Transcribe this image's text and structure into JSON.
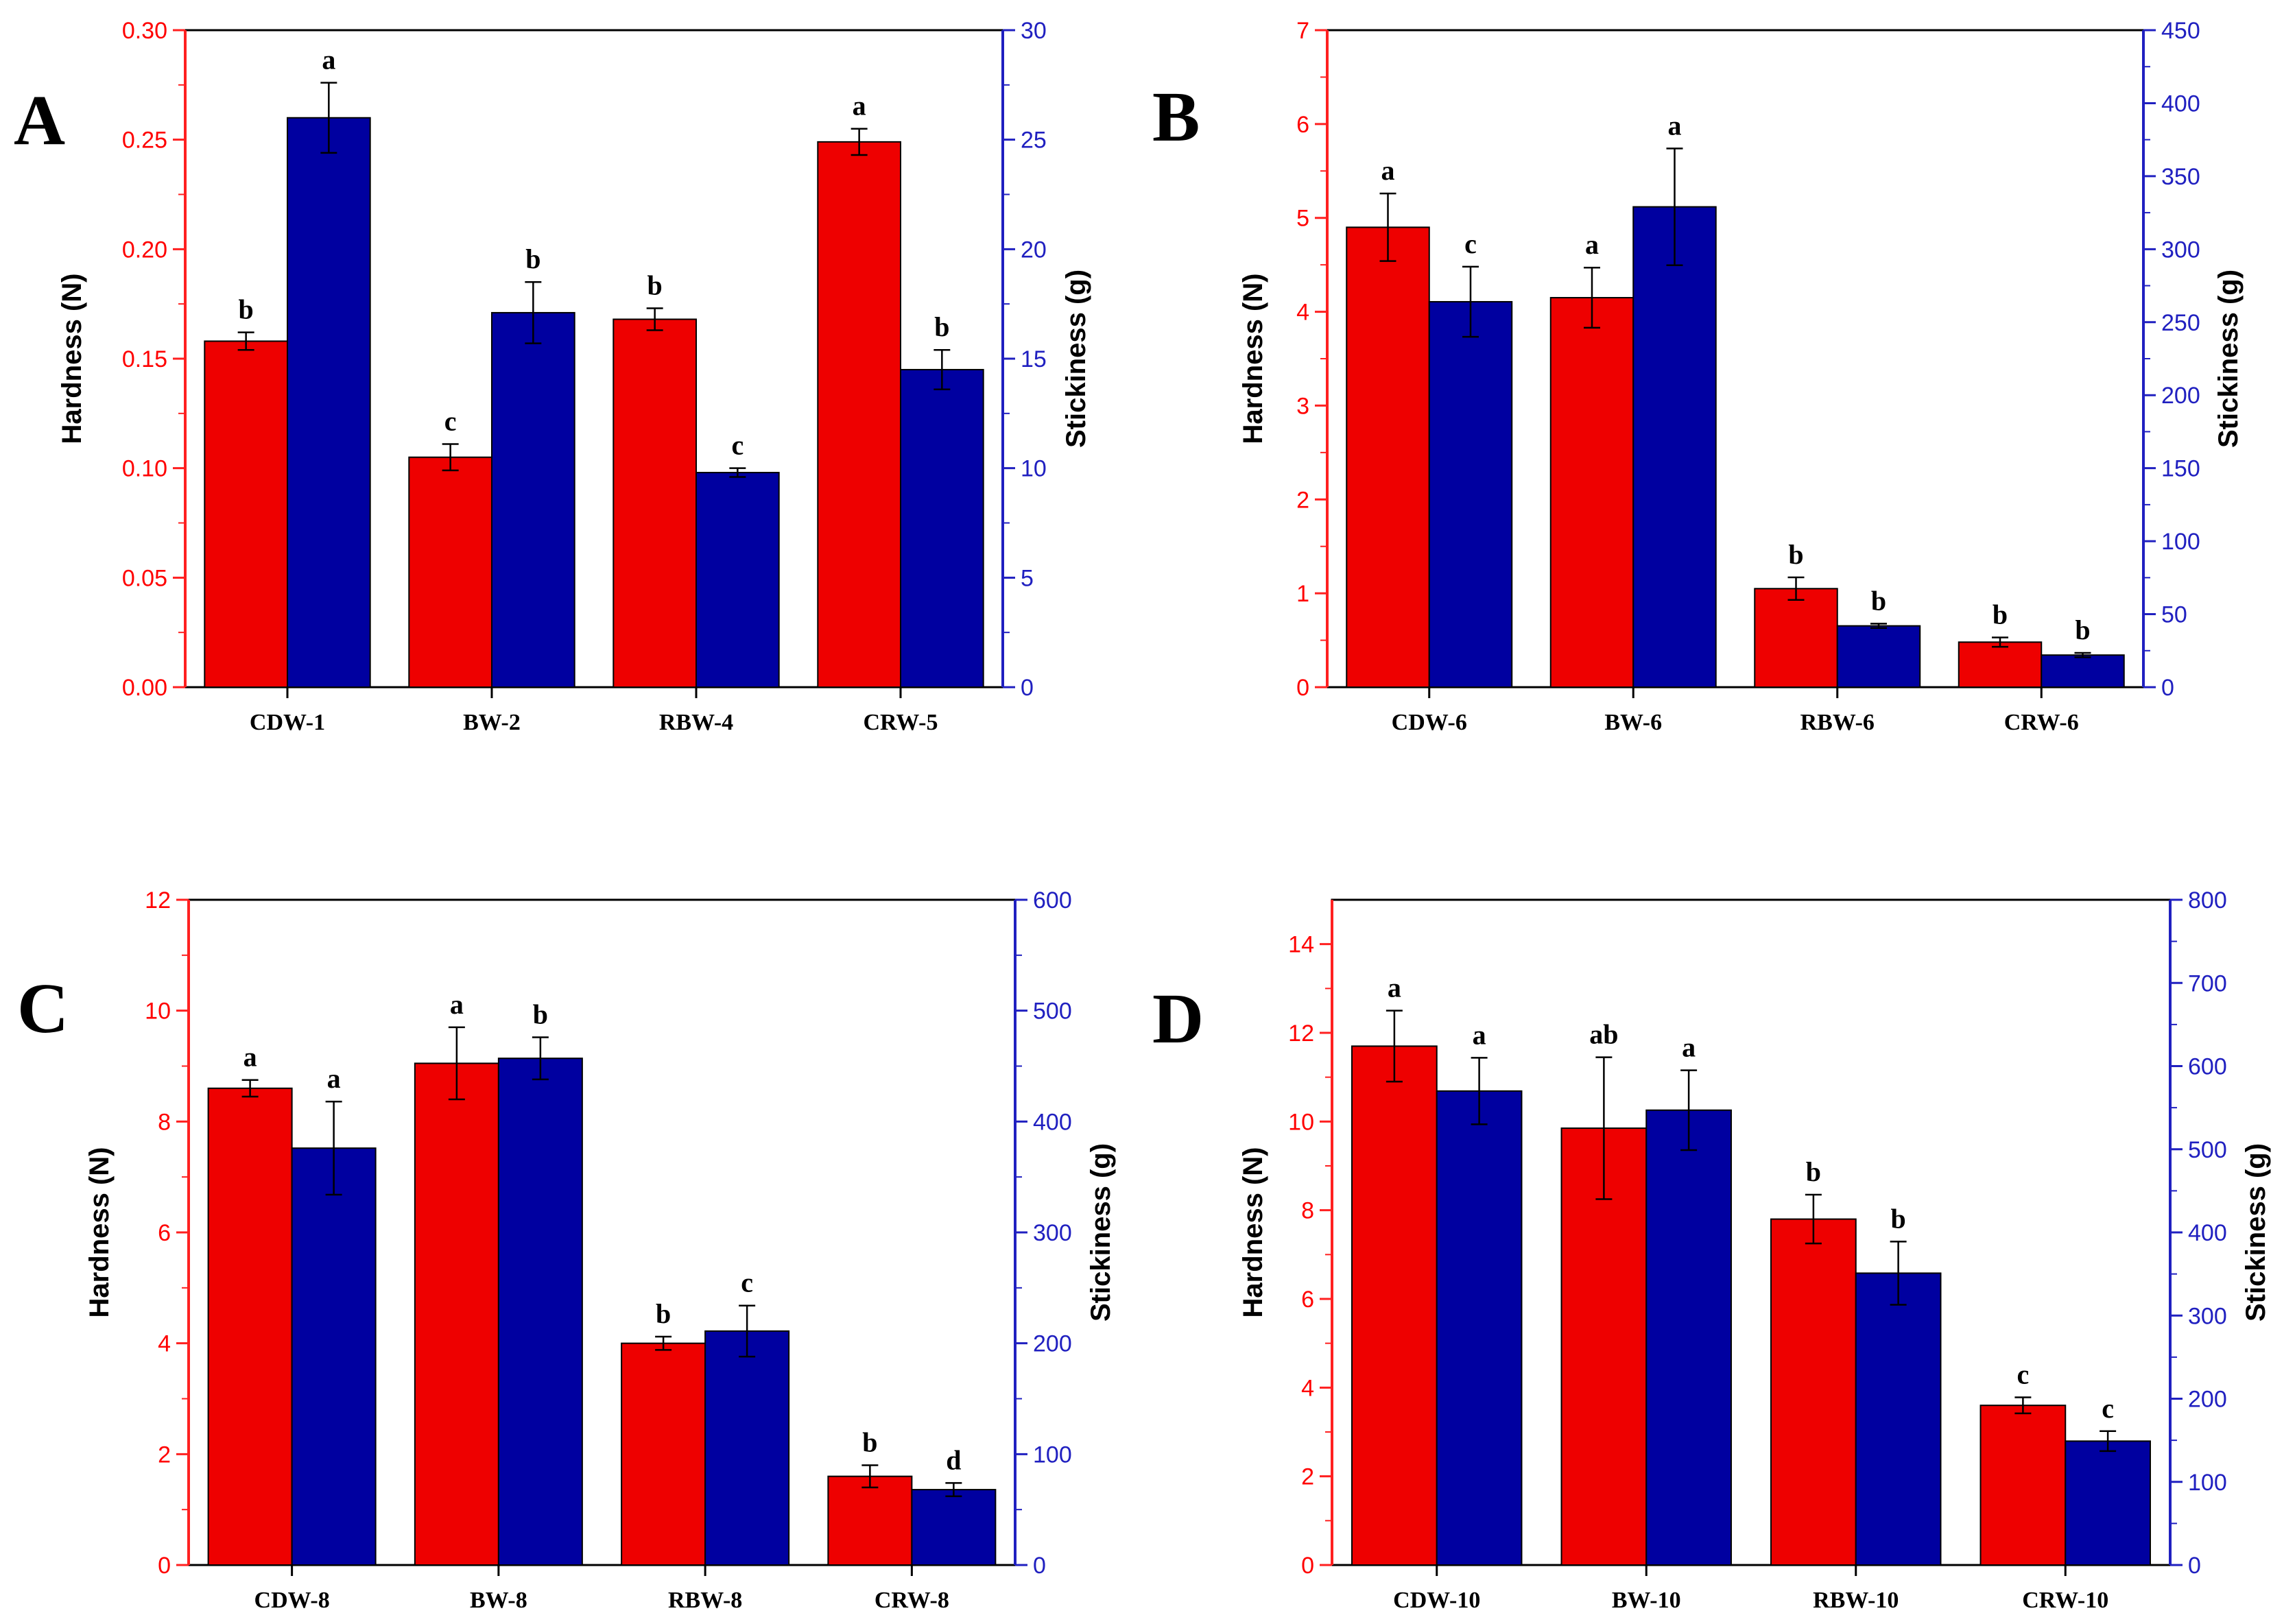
{
  "chart_data": [
    {
      "panel": "A",
      "type": "bar",
      "categories": [
        "CDW-1",
        "BW-2",
        "RBW-4",
        "CRW-5"
      ],
      "ylabel": "Hardness (N)",
      "y2label": "Stickiness (g)",
      "ylim": [
        0,
        0.3
      ],
      "yticks": [
        "0.00",
        "0.05",
        "0.10",
        "0.15",
        "0.20",
        "0.25",
        "0.30"
      ],
      "y2lim": [
        0,
        30
      ],
      "y2ticks": [
        "0",
        "5",
        "10",
        "15",
        "20",
        "25",
        "30"
      ],
      "series": [
        {
          "name": "Hardness",
          "axis": "left",
          "color": "#ee0000",
          "values": [
            0.158,
            0.105,
            0.168,
            0.249
          ],
          "errors": [
            0.004,
            0.006,
            0.005,
            0.006
          ],
          "letters": [
            "b",
            "c",
            "b",
            "a"
          ]
        },
        {
          "name": "Stickiness",
          "axis": "right",
          "color": "#0000a0",
          "values": [
            26.0,
            17.1,
            9.8,
            14.5
          ],
          "errors": [
            1.6,
            1.4,
            0.2,
            0.9
          ],
          "letters": [
            "a",
            "b",
            "c",
            "b"
          ]
        }
      ]
    },
    {
      "panel": "B",
      "type": "bar",
      "categories": [
        "CDW-6",
        "BW-6",
        "RBW-6",
        "CRW-6"
      ],
      "ylabel": "Hardness (N)",
      "y2label": "Stickiness (g)",
      "ylim": [
        0,
        7
      ],
      "yticks": [
        "0",
        "1",
        "2",
        "3",
        "4",
        "5",
        "6",
        "7"
      ],
      "y2lim": [
        0,
        450
      ],
      "y2ticks": [
        "0",
        "50",
        "100",
        "150",
        "200",
        "250",
        "300",
        "350",
        "400",
        "450"
      ],
      "series": [
        {
          "name": "Hardness",
          "axis": "left",
          "color": "#ee0000",
          "values": [
            4.9,
            4.15,
            1.05,
            0.48
          ],
          "errors": [
            0.36,
            0.32,
            0.12,
            0.05
          ],
          "letters": [
            "a",
            "a",
            "b",
            "b"
          ]
        },
        {
          "name": "Stickiness",
          "axis": "right",
          "color": "#0000a0",
          "values": [
            264,
            329,
            42,
            22
          ],
          "errors": [
            24,
            40,
            1.5,
            1.5
          ],
          "letters": [
            "c",
            "a",
            "b",
            "b"
          ]
        }
      ]
    },
    {
      "panel": "C",
      "type": "bar",
      "categories": [
        "CDW-8",
        "BW-8",
        "RBW-8",
        "CRW-8"
      ],
      "ylabel": "Hardness (N)",
      "y2label": "Stickiness (g)",
      "ylim": [
        0,
        12
      ],
      "yticks": [
        "0",
        "2",
        "4",
        "6",
        "8",
        "10",
        "12"
      ],
      "y2lim": [
        0,
        600
      ],
      "y2ticks": [
        "0",
        "100",
        "200",
        "300",
        "400",
        "500",
        "600"
      ],
      "series": [
        {
          "name": "Hardness",
          "axis": "left",
          "color": "#ee0000",
          "values": [
            8.6,
            9.05,
            4.0,
            1.6
          ],
          "errors": [
            0.15,
            0.65,
            0.12,
            0.2
          ],
          "letters": [
            "a",
            "a",
            "b",
            "b"
          ]
        },
        {
          "name": "Stickiness",
          "axis": "right",
          "color": "#0000a0",
          "values": [
            376,
            457,
            211,
            68
          ],
          "errors": [
            42,
            19,
            23,
            6
          ],
          "letters": [
            "a",
            "b",
            "c",
            "d"
          ]
        }
      ]
    },
    {
      "panel": "D",
      "type": "bar",
      "categories": [
        "CDW-10",
        "BW-10",
        "RBW-10",
        "CRW-10"
      ],
      "ylabel": "Hardness (N)",
      "y2label": "Stickiness (g)",
      "ylim": [
        0,
        15
      ],
      "yticks": [
        "0",
        "2",
        "4",
        "6",
        "8",
        "10",
        "12",
        "14"
      ],
      "y2lim": [
        0,
        800
      ],
      "y2ticks": [
        "0",
        "100",
        "200",
        "300",
        "400",
        "500",
        "600",
        "700",
        "800"
      ],
      "series": [
        {
          "name": "Hardness",
          "axis": "left",
          "color": "#ee0000",
          "values": [
            11.7,
            9.85,
            7.8,
            3.6
          ],
          "errors": [
            0.8,
            1.6,
            0.55,
            0.18
          ],
          "letters": [
            "a",
            "ab",
            "b",
            "c"
          ]
        },
        {
          "name": "Stickiness",
          "axis": "right",
          "color": "#0000a0",
          "values": [
            570,
            547,
            351,
            149
          ],
          "errors": [
            40,
            48,
            38,
            12
          ],
          "letters": [
            "a",
            "a",
            "b",
            "c"
          ]
        }
      ]
    }
  ]
}
